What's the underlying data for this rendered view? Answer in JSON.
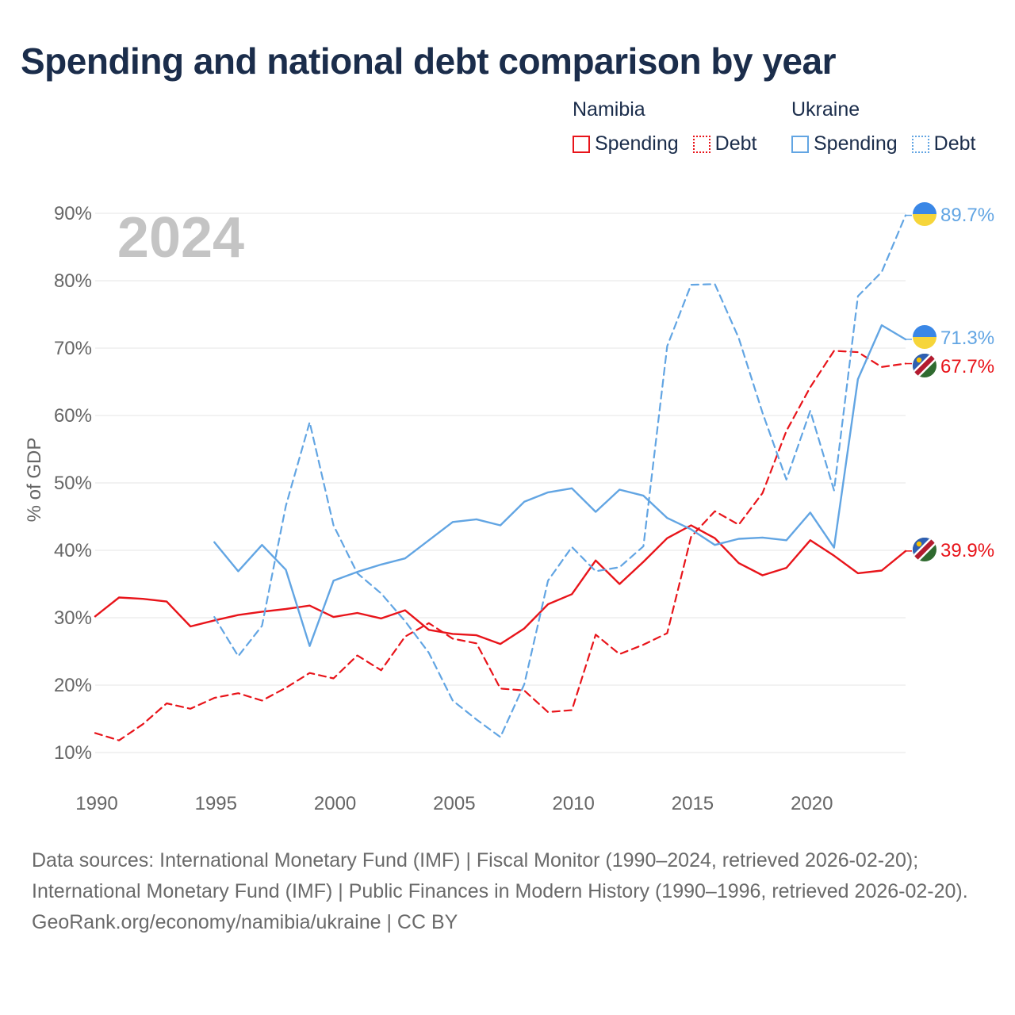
{
  "chart_data": {
    "type": "line",
    "title": "Spending and national debt comparison by year",
    "ylabel": "% of GDP",
    "xlabel": "",
    "year_label": "2024",
    "xlim": [
      1990,
      2024
    ],
    "ylim": [
      5,
      92
    ],
    "x_ticks": [
      "1990",
      "1995",
      "2000",
      "2005",
      "2010",
      "2015",
      "2020"
    ],
    "y_ticks": [
      {
        "value": 10,
        "label": "10%"
      },
      {
        "value": 20,
        "label": "20%"
      },
      {
        "value": 30,
        "label": "30%"
      },
      {
        "value": 40,
        "label": "40%"
      },
      {
        "value": 50,
        "label": "50%"
      },
      {
        "value": 60,
        "label": "60%"
      },
      {
        "value": 70,
        "label": "70%"
      },
      {
        "value": 80,
        "label": "80%"
      },
      {
        "value": 90,
        "label": "90%"
      }
    ],
    "legend": {
      "groups": [
        {
          "name": "Namibia",
          "items": [
            "Spending",
            "Debt"
          ]
        },
        {
          "name": "Ukraine",
          "items": [
            "Spending",
            "Debt"
          ]
        }
      ]
    },
    "series": [
      {
        "name": "Namibia Spending",
        "country": "Namibia",
        "measure": "Spending",
        "color": "#e8141a",
        "dashed": false,
        "end_label": "39.9%",
        "points": [
          [
            1990,
            30.2
          ],
          [
            1991,
            33.0
          ],
          [
            1992,
            32.8
          ],
          [
            1993,
            32.4
          ],
          [
            1994,
            28.7
          ],
          [
            1995,
            29.6
          ],
          [
            1996,
            30.4
          ],
          [
            1997,
            30.9
          ],
          [
            1998,
            31.3
          ],
          [
            1999,
            31.8
          ],
          [
            2000,
            30.1
          ],
          [
            2001,
            30.7
          ],
          [
            2002,
            29.9
          ],
          [
            2003,
            31.1
          ],
          [
            2004,
            28.2
          ],
          [
            2005,
            27.6
          ],
          [
            2006,
            27.4
          ],
          [
            2007,
            26.1
          ],
          [
            2008,
            28.4
          ],
          [
            2009,
            32.0
          ],
          [
            2010,
            33.5
          ],
          [
            2011,
            38.5
          ],
          [
            2012,
            35.0
          ],
          [
            2013,
            38.3
          ],
          [
            2014,
            41.8
          ],
          [
            2015,
            43.7
          ],
          [
            2016,
            41.8
          ],
          [
            2017,
            38.1
          ],
          [
            2018,
            36.3
          ],
          [
            2019,
            37.4
          ],
          [
            2020,
            41.5
          ],
          [
            2021,
            39.2
          ],
          [
            2022,
            36.6
          ],
          [
            2023,
            37.0
          ],
          [
            2024,
            39.9
          ]
        ]
      },
      {
        "name": "Namibia Debt",
        "country": "Namibia",
        "measure": "Debt",
        "color": "#e8141a",
        "dashed": true,
        "end_label": "67.7%",
        "points": [
          [
            1990,
            12.9
          ],
          [
            1991,
            11.8
          ],
          [
            1992,
            14.2
          ],
          [
            1993,
            17.3
          ],
          [
            1994,
            16.5
          ],
          [
            1995,
            18.1
          ],
          [
            1996,
            18.8
          ],
          [
            1997,
            17.7
          ],
          [
            1998,
            19.6
          ],
          [
            1999,
            21.8
          ],
          [
            2000,
            21.0
          ],
          [
            2001,
            24.4
          ],
          [
            2002,
            22.2
          ],
          [
            2003,
            27.2
          ],
          [
            2004,
            29.2
          ],
          [
            2005,
            26.9
          ],
          [
            2006,
            26.2
          ],
          [
            2007,
            19.5
          ],
          [
            2008,
            19.2
          ],
          [
            2009,
            16.0
          ],
          [
            2010,
            16.3
          ],
          [
            2011,
            27.5
          ],
          [
            2012,
            24.6
          ],
          [
            2013,
            26.0
          ],
          [
            2014,
            27.7
          ],
          [
            2015,
            42.0
          ],
          [
            2016,
            45.8
          ],
          [
            2017,
            43.8
          ],
          [
            2018,
            48.5
          ],
          [
            2019,
            57.7
          ],
          [
            2020,
            64.2
          ],
          [
            2021,
            69.6
          ],
          [
            2022,
            69.4
          ],
          [
            2023,
            67.2
          ],
          [
            2024,
            67.7
          ]
        ]
      },
      {
        "name": "Ukraine Spending",
        "country": "Ukraine",
        "measure": "Spending",
        "color": "#62a5e3",
        "dashed": false,
        "end_label": "71.3%",
        "points": [
          [
            1995,
            41.2
          ],
          [
            1996,
            36.9
          ],
          [
            1997,
            40.8
          ],
          [
            1998,
            37.1
          ],
          [
            1999,
            25.8
          ],
          [
            2000,
            35.5
          ],
          [
            2001,
            36.8
          ],
          [
            2002,
            37.9
          ],
          [
            2003,
            38.8
          ],
          [
            2004,
            41.5
          ],
          [
            2005,
            44.2
          ],
          [
            2006,
            44.6
          ],
          [
            2007,
            43.7
          ],
          [
            2008,
            47.2
          ],
          [
            2009,
            48.6
          ],
          [
            2010,
            49.2
          ],
          [
            2011,
            45.7
          ],
          [
            2012,
            49.0
          ],
          [
            2013,
            48.1
          ],
          [
            2014,
            44.8
          ],
          [
            2015,
            43.1
          ],
          [
            2016,
            40.8
          ],
          [
            2017,
            41.7
          ],
          [
            2018,
            41.9
          ],
          [
            2019,
            41.5
          ],
          [
            2020,
            45.6
          ],
          [
            2021,
            40.4
          ],
          [
            2022,
            65.4
          ],
          [
            2023,
            73.4
          ],
          [
            2024,
            71.3
          ]
        ]
      },
      {
        "name": "Ukraine Debt",
        "country": "Ukraine",
        "measure": "Debt",
        "color": "#62a5e3",
        "dashed": true,
        "end_label": "89.7%",
        "points": [
          [
            1995,
            30.1
          ],
          [
            1996,
            24.3
          ],
          [
            1997,
            28.8
          ],
          [
            1998,
            46.6
          ],
          [
            1999,
            59.0
          ],
          [
            2000,
            43.7
          ],
          [
            2001,
            36.6
          ],
          [
            2002,
            33.6
          ],
          [
            2003,
            29.5
          ],
          [
            2004,
            24.8
          ],
          [
            2005,
            17.7
          ],
          [
            2006,
            14.9
          ],
          [
            2007,
            12.3
          ],
          [
            2008,
            20.1
          ],
          [
            2009,
            35.5
          ],
          [
            2010,
            40.5
          ],
          [
            2011,
            36.9
          ],
          [
            2012,
            37.5
          ],
          [
            2013,
            40.6
          ],
          [
            2014,
            70.3
          ],
          [
            2015,
            79.4
          ],
          [
            2016,
            79.5
          ],
          [
            2017,
            71.5
          ],
          [
            2018,
            60.4
          ],
          [
            2019,
            50.5
          ],
          [
            2020,
            60.7
          ],
          [
            2021,
            48.9
          ],
          [
            2022,
            77.7
          ],
          [
            2023,
            81.3
          ],
          [
            2024,
            89.7
          ]
        ]
      }
    ]
  },
  "footer": {
    "sources": "Data sources: International Monetary Fund (IMF) | Fiscal Monitor (1990–2024, retrieved 2026-02-20); International Monetary Fund (IMF) | Public Finances in Modern History (1990–1996, retrieved 2026-02-20).",
    "credit": "GeoRank.org/economy/namibia/ukraine | CC BY"
  },
  "colors": {
    "namibia": "#e8141a",
    "ukraine": "#62a5e3",
    "title": "#1b2d4b",
    "axis_text": "#666666",
    "grid": "#e6e6e6",
    "year_watermark": "#c4c4c4"
  }
}
